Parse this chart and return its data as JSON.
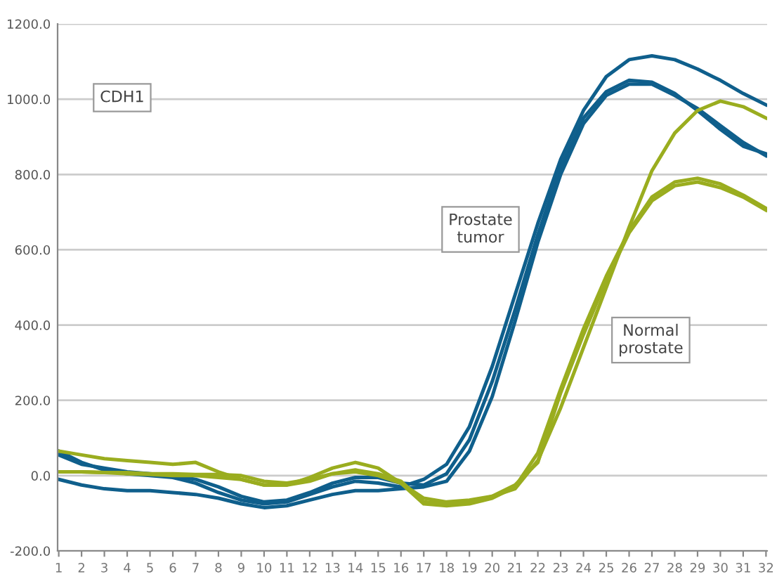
{
  "chart_data": {
    "type": "line",
    "categories": [
      "1",
      "2",
      "3",
      "4",
      "5",
      "6",
      "7",
      "8",
      "9",
      "10",
      "11",
      "12",
      "13",
      "14",
      "15",
      "16",
      "17",
      "18",
      "19",
      "20",
      "21",
      "22",
      "23",
      "24",
      "25",
      "26",
      "27",
      "28",
      "29",
      "30",
      "31",
      "32"
    ],
    "series": [
      {
        "color": "#0f5f8c",
        "values": [
          65,
          35,
          15,
          5,
          0,
          -5,
          -20,
          -45,
          -65,
          -75,
          -70,
          -50,
          -30,
          -15,
          -20,
          -30,
          -10,
          30,
          130,
          290,
          480,
          670,
          840,
          970,
          1060,
          1105,
          1115,
          1105,
          1080,
          1050,
          1015,
          985
        ]
      },
      {
        "color": "#0f5f8c",
        "values": [
          55,
          30,
          20,
          10,
          5,
          0,
          -10,
          -30,
          -55,
          -70,
          -65,
          -45,
          -20,
          -5,
          -5,
          -20,
          -25,
          5,
          95,
          250,
          440,
          640,
          820,
          950,
          1020,
          1050,
          1045,
          1015,
          970,
          920,
          875,
          855
        ]
      },
      {
        "color": "#0f5f8c",
        "values": [
          -10,
          -25,
          -35,
          -40,
          -40,
          -45,
          -50,
          -60,
          -75,
          -85,
          -80,
          -65,
          -50,
          -40,
          -40,
          -35,
          -30,
          -15,
          65,
          210,
          410,
          620,
          800,
          935,
          1010,
          1040,
          1040,
          1010,
          975,
          930,
          885,
          850
        ]
      },
      {
        "color": "#9aad1f",
        "values": [
          10,
          10,
          8,
          8,
          5,
          5,
          3,
          3,
          0,
          -15,
          -20,
          -10,
          5,
          10,
          0,
          -20,
          -60,
          -70,
          -65,
          -55,
          -35,
          40,
          180,
          340,
          500,
          660,
          810,
          910,
          970,
          995,
          980,
          950
        ]
      },
      {
        "color": "#9aad1f",
        "values": [
          65,
          55,
          45,
          40,
          35,
          30,
          35,
          10,
          -10,
          -25,
          -25,
          -5,
          20,
          35,
          20,
          -20,
          -75,
          -80,
          -75,
          -60,
          -30,
          60,
          230,
          390,
          530,
          650,
          740,
          780,
          790,
          775,
          745,
          710
        ]
      },
      {
        "color": "#9aad1f",
        "values": [
          10,
          10,
          8,
          5,
          3,
          0,
          0,
          -5,
          -10,
          -25,
          -25,
          -15,
          5,
          15,
          5,
          -15,
          -70,
          -75,
          -70,
          -55,
          -25,
          35,
          220,
          375,
          520,
          645,
          730,
          770,
          780,
          765,
          740,
          705
        ]
      }
    ],
    "ylim": [
      -200,
      1200
    ],
    "yticks": [
      {
        "value": -200,
        "label": "-200.0"
      },
      {
        "value": 0,
        "label": "0.0"
      },
      {
        "value": 200,
        "label": "200.0"
      },
      {
        "value": 400,
        "label": "400.0"
      },
      {
        "value": 600,
        "label": "600.0"
      },
      {
        "value": 800,
        "label": "800.0"
      },
      {
        "value": 1000,
        "label": "1000.0"
      },
      {
        "value": 1200,
        "label": "1200.0"
      }
    ],
    "grid": "y",
    "marker": "none",
    "line_style": "solid",
    "annotations": [
      "CDH1",
      "Prostate\ntumor",
      "Normal\nprostate"
    ]
  }
}
